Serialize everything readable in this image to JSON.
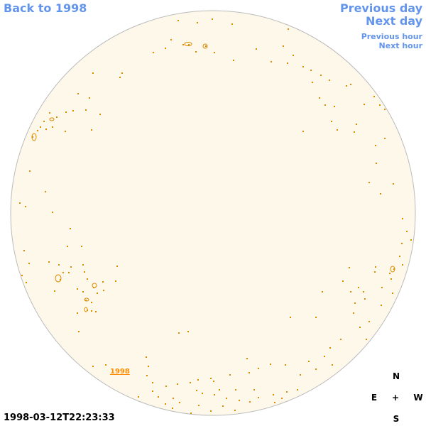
{
  "nav": {
    "back_label": "Back to 1998",
    "prev_day_label": "Previous day",
    "next_day_label": "Next day",
    "prev_hour_label": "Previous hour",
    "next_hour_label": "Next hour"
  },
  "disk": {
    "year_label": "1998",
    "fill_color": "#fdf8ea",
    "outline_color": "#bbbbbb",
    "feature_color": "#e08a00"
  },
  "timestamp": "1998-03-12T22:23:33",
  "compass": {
    "north": "N",
    "east": "E",
    "center": "+",
    "west": "W",
    "south": "S"
  },
  "colors": {
    "link": "#6495ed",
    "year_link": "#ff8c00"
  }
}
